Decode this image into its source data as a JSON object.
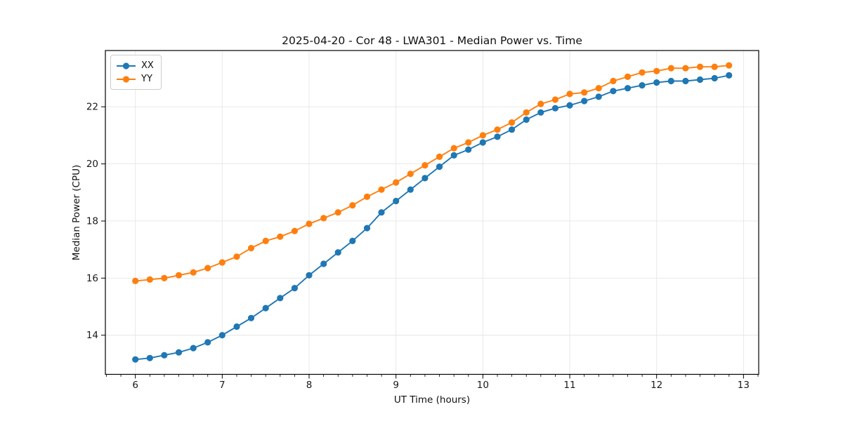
{
  "chart_data": {
    "type": "line",
    "title": "2025-04-20 - Cor 48 - LWA301 - Median Power vs. Time",
    "xlabel": "UT Time (hours)",
    "ylabel": "Median Power (CPU)",
    "x": [
      6.0,
      6.167,
      6.333,
      6.5,
      6.667,
      6.833,
      7.0,
      7.167,
      7.333,
      7.5,
      7.667,
      7.833,
      8.0,
      8.167,
      8.333,
      8.5,
      8.667,
      8.833,
      9.0,
      9.167,
      9.333,
      9.5,
      9.667,
      9.833,
      10.0,
      10.167,
      10.333,
      10.5,
      10.667,
      10.833,
      11.0,
      11.167,
      11.333,
      11.5,
      11.667,
      11.833,
      12.0,
      12.167,
      12.333,
      12.5,
      12.667,
      12.833
    ],
    "series": [
      {
        "name": "XX",
        "color": "#1f77b4",
        "values": [
          13.15,
          13.2,
          13.3,
          13.4,
          13.55,
          13.75,
          14.0,
          14.3,
          14.6,
          14.95,
          15.3,
          15.65,
          16.1,
          16.5,
          16.9,
          17.3,
          17.75,
          18.3,
          18.7,
          19.1,
          19.5,
          19.9,
          20.3,
          20.5,
          20.75,
          20.95,
          21.2,
          21.55,
          21.8,
          21.95,
          22.05,
          22.2,
          22.35,
          22.55,
          22.65,
          22.75,
          22.85,
          22.9,
          22.9,
          22.95,
          23.0,
          23.1
        ]
      },
      {
        "name": "YY",
        "color": "#ff7f0e",
        "values": [
          15.9,
          15.95,
          16.0,
          16.1,
          16.2,
          16.35,
          16.55,
          16.75,
          17.05,
          17.3,
          17.45,
          17.65,
          17.9,
          18.1,
          18.3,
          18.55,
          18.85,
          19.1,
          19.35,
          19.65,
          19.95,
          20.25,
          20.55,
          20.75,
          21.0,
          21.2,
          21.45,
          21.8,
          22.1,
          22.25,
          22.45,
          22.5,
          22.65,
          22.9,
          23.05,
          23.2,
          23.25,
          23.35,
          23.35,
          23.4,
          23.4,
          23.45
        ]
      }
    ],
    "xlim": [
      5.655,
      13.175
    ],
    "ylim": [
      12.63,
      23.97
    ],
    "x_ticks": [
      6,
      7,
      8,
      9,
      10,
      11,
      12,
      13
    ],
    "y_ticks": [
      14,
      16,
      18,
      20,
      22
    ],
    "x_minor_step": 0.16667,
    "grid": true,
    "grid_color": "#e6e6e6",
    "axis_color": "#000000",
    "tick_label_color": "#1a1a1a",
    "legend_position": "upper left",
    "marker": "circle"
  }
}
